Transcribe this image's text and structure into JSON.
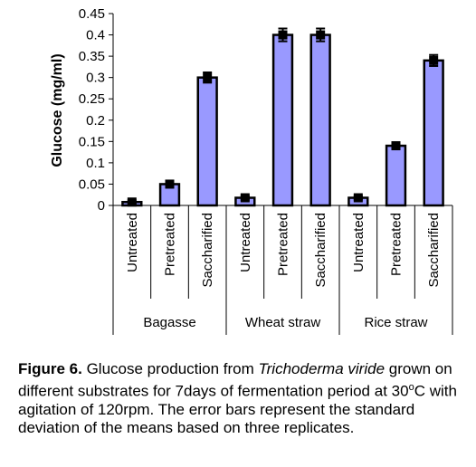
{
  "chart_data": {
    "type": "bar",
    "ylabel": "Glucose (mg/ml)",
    "ylim": [
      0,
      0.45
    ],
    "yticks": [
      "0",
      "0.05",
      "0.1",
      "0.15",
      "0.2",
      "0.25",
      "0.3",
      "0.35",
      "0.4",
      "0.45"
    ],
    "groups": [
      {
        "name": "Bagasse",
        "categories": [
          "Untreated",
          "Pretreated",
          "Saccharified"
        ],
        "values": [
          0.008,
          0.05,
          0.3
        ],
        "errors": [
          0.004,
          0.006,
          0.012
        ]
      },
      {
        "name": "Wheat straw",
        "categories": [
          "Untreated",
          "Pretreated",
          "Saccharified"
        ],
        "values": [
          0.018,
          0.4,
          0.4
        ],
        "errors": [
          0.004,
          0.015,
          0.015
        ]
      },
      {
        "name": "Rice straw",
        "categories": [
          "Untreated",
          "Pretreated",
          "Saccharified"
        ],
        "values": [
          0.018,
          0.14,
          0.34
        ],
        "errors": [
          0.004,
          0.007,
          0.013
        ]
      }
    ],
    "bar_color": "#9999ff",
    "grid": false,
    "legend": "none"
  },
  "caption": {
    "label": "Figure 6.",
    "text_before_italic": " Glucose production from ",
    "italic": "Trichoderma viride",
    "text_part1": " grown on different substrates for 7days of fermentation period at 30",
    "degree": "o",
    "text_part2": "C with agitation of 120rpm. The error bars represent the standard deviation of the means based on three replicates."
  }
}
